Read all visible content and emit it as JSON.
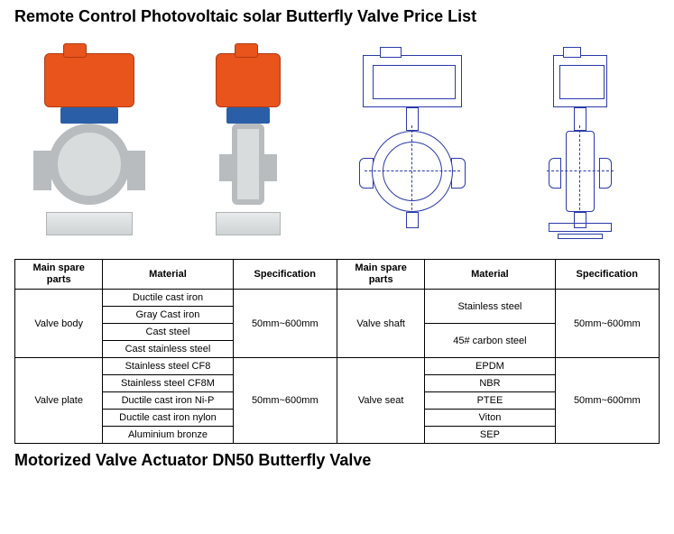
{
  "title_top": "Remote Control Photovoltaic solar Butterfly Valve Price List",
  "title_bottom": "Motorized Valve Actuator DN50 Butterfly Valve",
  "table": {
    "headers": {
      "col1": "Main spare parts",
      "col2": "Material",
      "col3": "Specification",
      "col4": "Main spare\nparts",
      "col5": "Material",
      "col6": "Specification"
    },
    "body_rows": [
      {
        "part": "Valve body",
        "materials": [
          "Ductile cast iron",
          "Gray Cast iron",
          "Cast steel",
          "Cast stainless steel"
        ],
        "spec": "50mm~600mm"
      },
      {
        "part": "Valve plate",
        "materials": [
          "Stainless steel CF8",
          "Stainless steel CF8M",
          "Ductile cast iron Ni-P",
          "Ductile cast iron nylon",
          "Aluminium bronze"
        ],
        "spec": "50mm~600mm"
      }
    ],
    "shaft_rows": {
      "part": "Valve shaft",
      "materials": [
        "Stainless steel",
        "45# carbon steel"
      ],
      "spec": "50mm~600mm"
    },
    "seat_rows": {
      "part": "Valve seat",
      "materials": [
        "EPDM",
        "NBR",
        "PTEE",
        "Viton",
        "SEP"
      ],
      "spec": "50mm~600mm"
    }
  },
  "colors": {
    "actuator": "#e8541c",
    "connector": "#2a5fa8",
    "metal": "#b8bcbf",
    "diagram_line": "#2a3aa8",
    "text": "#000000",
    "background": "#ffffff"
  }
}
